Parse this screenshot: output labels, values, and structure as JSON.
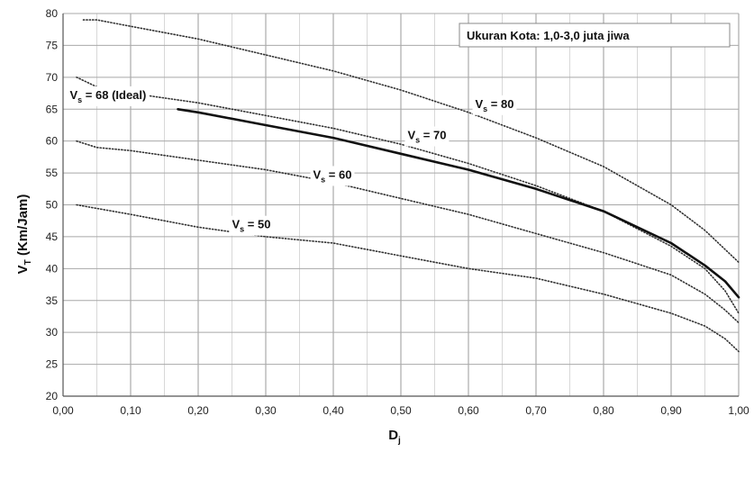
{
  "chart_data": {
    "type": "line",
    "xlabel": "D",
    "xlabel_sub": "j",
    "ylabel": "V",
    "ylabel_sub": "T",
    "ylabel_unit": " (Km/Jam)",
    "xlim": [
      0,
      1
    ],
    "ylim": [
      20,
      80
    ],
    "x_ticks": [
      0,
      0.1,
      0.2,
      0.3,
      0.4,
      0.5,
      0.6,
      0.7,
      0.8,
      0.9,
      1.0
    ],
    "x_tick_labels": [
      "0,00",
      "0,10",
      "0,20",
      "0,30",
      "0,40",
      "0,50",
      "0,60",
      "0,70",
      "0,80",
      "0,90",
      "1,00"
    ],
    "x_minor_step": 0.05,
    "y_ticks": [
      20,
      25,
      30,
      35,
      40,
      45,
      50,
      55,
      60,
      65,
      70,
      75,
      80
    ],
    "y_tick_labels": [
      "20",
      "25",
      "30",
      "35",
      "40",
      "45",
      "50",
      "55",
      "60",
      "65",
      "70",
      "75",
      "80"
    ],
    "grid": true,
    "legend_box": {
      "text": "Ukuran Kota: 1,0-3,0 juta jiwa",
      "placement": "top-right"
    },
    "series": [
      {
        "name": "80",
        "style": "dotted",
        "color": "#333333",
        "x": [
          0.03,
          0.05,
          0.1,
          0.2,
          0.3,
          0.4,
          0.5,
          0.6,
          0.7,
          0.8,
          0.9,
          0.95,
          0.98,
          1.0
        ],
        "y": [
          79,
          79,
          78,
          76,
          73.5,
          71,
          68,
          64.5,
          60.5,
          56,
          50,
          46,
          43,
          41
        ]
      },
      {
        "name": "70",
        "style": "dotted",
        "color": "#333333",
        "x": [
          0.02,
          0.05,
          0.1,
          0.2,
          0.3,
          0.4,
          0.5,
          0.6,
          0.7,
          0.8,
          0.9,
          0.95,
          0.98,
          1.0
        ],
        "y": [
          70,
          68.5,
          67.5,
          66,
          64,
          62,
          59.5,
          56.5,
          53,
          49,
          43.5,
          40,
          36.5,
          33
        ]
      },
      {
        "name": "68 (Ideal)",
        "label_suffix": " (Ideal)",
        "style": "solid",
        "color": "#111111",
        "x": [
          0.17,
          0.2,
          0.3,
          0.4,
          0.5,
          0.6,
          0.7,
          0.8,
          0.9,
          0.95,
          0.98,
          1.0
        ],
        "y": [
          65,
          64.5,
          62.5,
          60.5,
          58,
          55.5,
          52.5,
          49,
          44,
          40.5,
          38,
          35.5
        ]
      },
      {
        "name": "60",
        "style": "dotted",
        "color": "#333333",
        "x": [
          0.02,
          0.05,
          0.1,
          0.2,
          0.3,
          0.4,
          0.5,
          0.6,
          0.7,
          0.8,
          0.9,
          0.95,
          0.98,
          1.0
        ],
        "y": [
          60,
          59,
          58.5,
          57,
          55.5,
          53.5,
          51,
          48.5,
          45.5,
          42.5,
          39,
          36,
          33.5,
          31.5
        ]
      },
      {
        "name": "50",
        "style": "dotted",
        "color": "#333333",
        "x": [
          0.02,
          0.1,
          0.2,
          0.3,
          0.4,
          0.5,
          0.6,
          0.7,
          0.8,
          0.9,
          0.95,
          0.98,
          1.0
        ],
        "y": [
          50,
          48.5,
          46.5,
          45,
          44,
          42,
          40,
          38.5,
          36,
          33,
          31,
          29,
          27
        ]
      }
    ],
    "annotations": [
      {
        "series": "80",
        "main": "V",
        "sub": "s",
        "rest": " = 80",
        "x": 0.61,
        "y": 65.2
      },
      {
        "series": "70",
        "main": "V",
        "sub": "s",
        "rest": " = 70",
        "x": 0.51,
        "y": 60.3
      },
      {
        "series": "68 (Ideal)",
        "main": "V",
        "sub": "s",
        "rest": " = 68 (Ideal)",
        "x": 0.01,
        "y": 66.6
      },
      {
        "series": "60",
        "main": "V",
        "sub": "s",
        "rest": " = 60",
        "x": 0.37,
        "y": 54.1
      },
      {
        "series": "50",
        "main": "V",
        "sub": "s",
        "rest": " = 50",
        "x": 0.25,
        "y": 46.3
      }
    ]
  }
}
